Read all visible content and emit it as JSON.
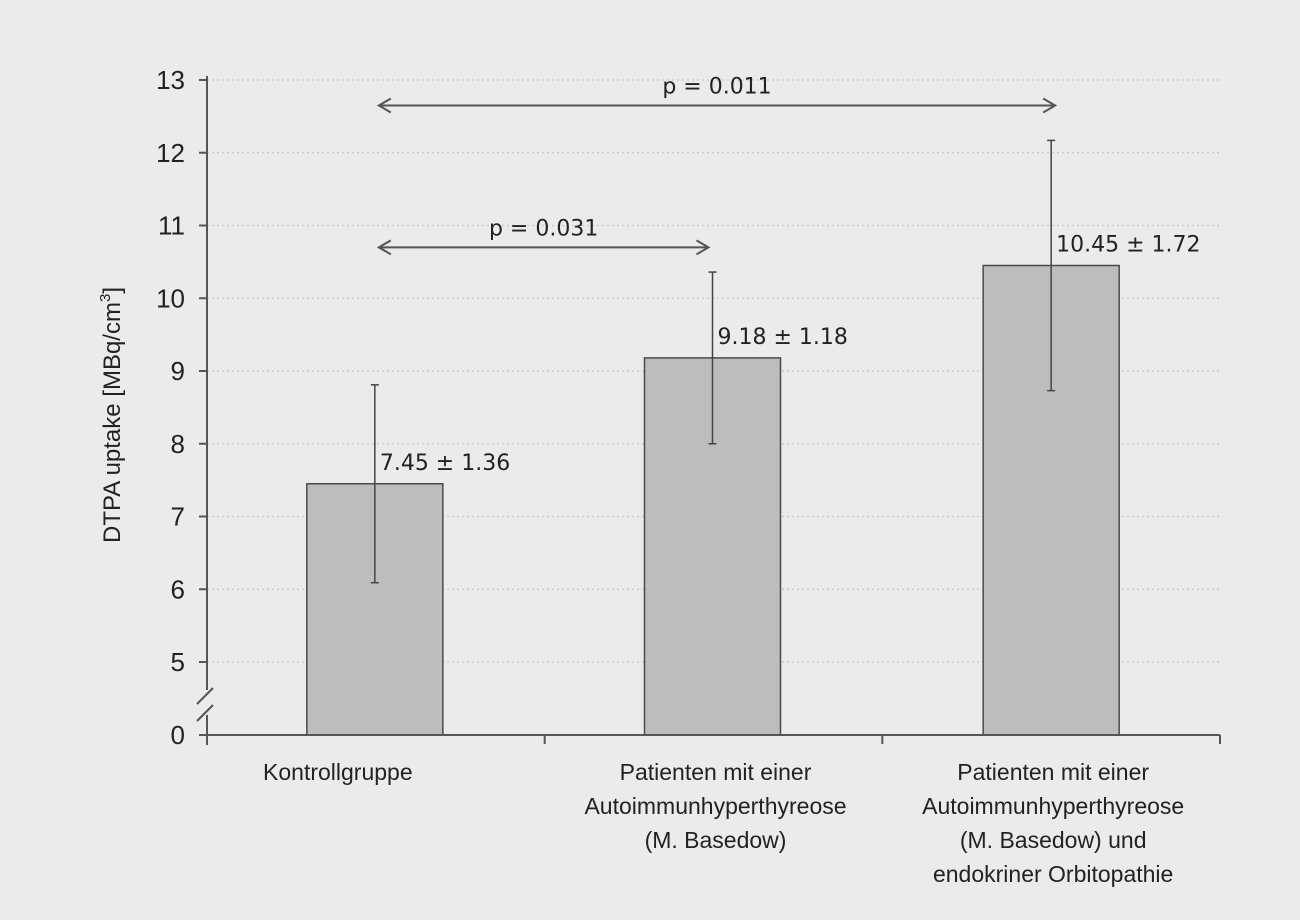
{
  "colors": {
    "background": "#ebebeb",
    "bar_fill": "#bdbdbd",
    "bar_stroke": "#4a4a4a",
    "axis": "#555555",
    "grid": "#c8c8c8",
    "error_bar": "#444444",
    "arrow": "#555555"
  },
  "chart_data": {
    "type": "bar",
    "ylabel": {
      "main": "DTPA uptake [MBq/cm",
      "superscript": "3",
      "close": "]"
    },
    "yticks": [
      0,
      5,
      6,
      7,
      8,
      9,
      10,
      11,
      12,
      13
    ],
    "ylim": [
      4.5,
      13
    ],
    "axis_break": true,
    "grid": true,
    "categories": [
      [
        "Kontrollgruppe"
      ],
      [
        "Patienten mit einer",
        "Autoimmunhyperthyreose",
        "(M. Basedow)"
      ],
      [
        "Patienten mit einer",
        "Autoimmunhyperthyreose",
        "(M. Basedow) und",
        "endokriner Orbitopathie"
      ]
    ],
    "values": [
      7.45,
      9.18,
      10.45
    ],
    "errors": [
      1.36,
      1.18,
      1.72
    ],
    "data_labels": [
      "7.45 ± 1.36",
      "9.18 ± 1.18",
      "10.45 ± 1.72"
    ],
    "comparisons": [
      {
        "from": 0,
        "to": 1,
        "label": "p = 0.031",
        "y": 10.7
      },
      {
        "from": 0,
        "to": 2,
        "label": "p = 0.011",
        "y": 12.65
      }
    ]
  }
}
